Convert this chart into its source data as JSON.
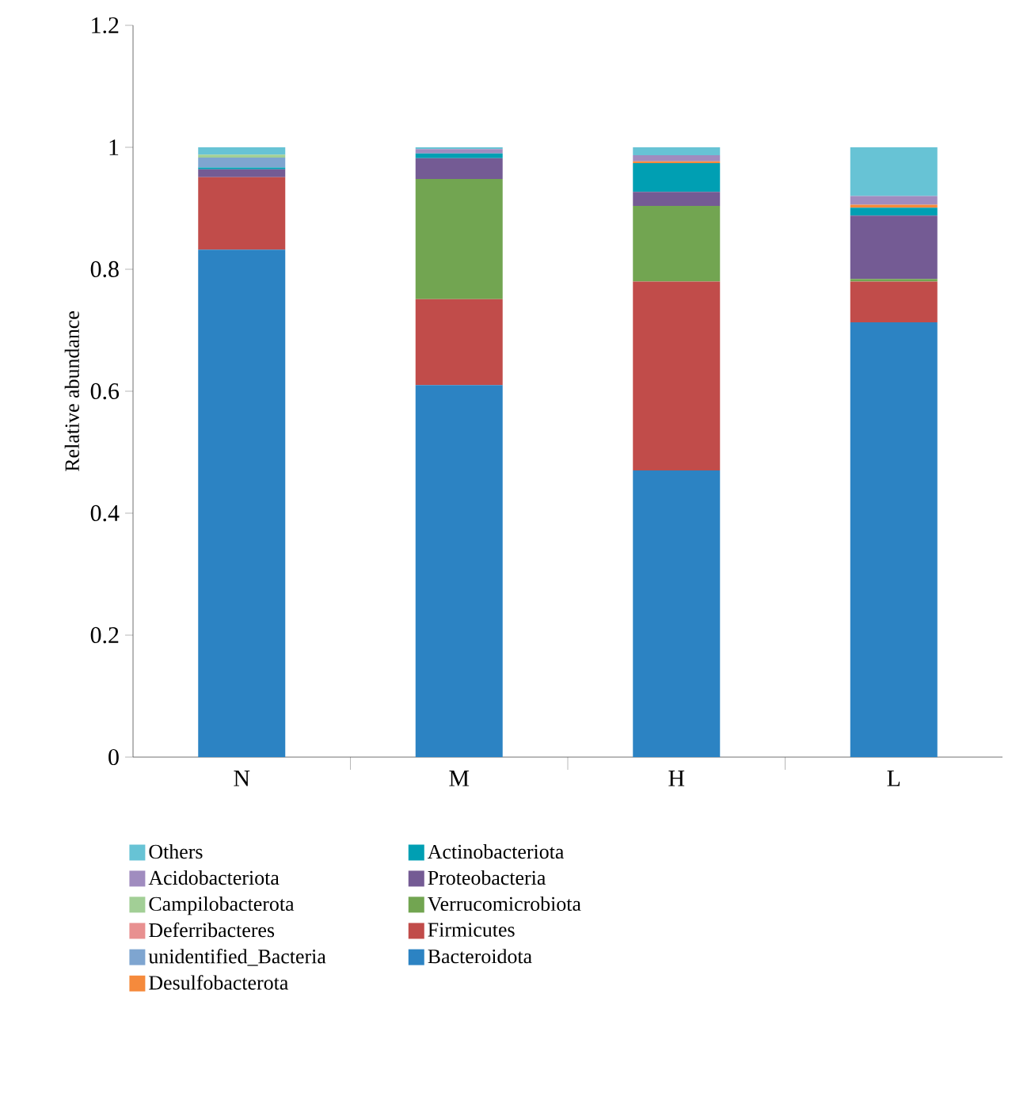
{
  "chart_data": {
    "type": "bar",
    "stacked": true,
    "ylabel": "Relative abundance",
    "categories": [
      "N",
      "M",
      "H",
      "L"
    ],
    "ylim": [
      0,
      1.2
    ],
    "yticks": [
      0,
      0.2,
      0.4,
      0.6,
      0.8,
      1,
      1.2
    ],
    "legend": "bottom",
    "series": [
      {
        "name": "Bacteroidota",
        "color": "#2c83c3",
        "values": [
          0.832,
          0.61,
          0.47,
          0.713
        ]
      },
      {
        "name": "Firmicutes",
        "color": "#c14c4a",
        "values": [
          0.119,
          0.141,
          0.31,
          0.067
        ]
      },
      {
        "name": "Verrucomicrobiota",
        "color": "#72a551",
        "values": [
          0,
          0.197,
          0.124,
          0.004
        ]
      },
      {
        "name": "Proteobacteria",
        "color": "#745b94",
        "values": [
          0.013,
          0.034,
          0.023,
          0.104
        ]
      },
      {
        "name": "Actinobacteriota",
        "color": "#009fb3",
        "values": [
          0.003,
          0.008,
          0.047,
          0.013
        ]
      },
      {
        "name": "Desulfobacterota",
        "color": "#f58a3c",
        "values": [
          0,
          0,
          0.003,
          0.005
        ]
      },
      {
        "name": "unidentified_Bacteria",
        "color": "#7ea5d0",
        "values": [
          0.016,
          0,
          0,
          0
        ]
      },
      {
        "name": "Deferribacteres",
        "color": "#e89090",
        "values": [
          0,
          0,
          0,
          0
        ]
      },
      {
        "name": "Campilobacterota",
        "color": "#a2cf96",
        "values": [
          0.005,
          0,
          0,
          0
        ]
      },
      {
        "name": "Acidobacteriota",
        "color": "#a08cbf",
        "values": [
          0,
          0.007,
          0.01,
          0.014
        ]
      },
      {
        "name": "Others",
        "color": "#67c3d5",
        "values": [
          0.012,
          0.003,
          0.013,
          0.08
        ]
      }
    ]
  }
}
